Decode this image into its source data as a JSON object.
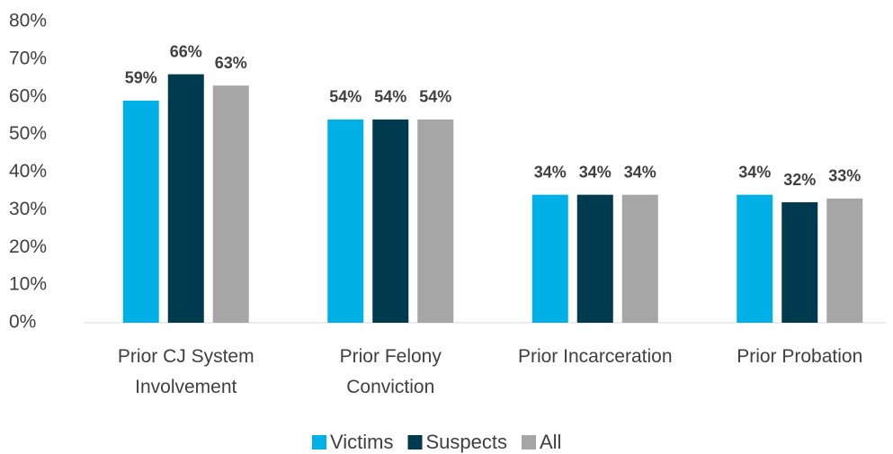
{
  "chart_data": {
    "type": "bar",
    "categories": [
      "Prior CJ System Involvement",
      "Prior Felony Conviction",
      "Prior Incarceration",
      "Prior Probation"
    ],
    "series": [
      {
        "name": "Victims",
        "color": "#00b0e6",
        "values": [
          59,
          54,
          34,
          34
        ],
        "value_labels": [
          "59%",
          "54%",
          "34%",
          "34%"
        ]
      },
      {
        "name": "Suspects",
        "color": "#003a4f",
        "values": [
          66,
          54,
          34,
          32
        ],
        "value_labels": [
          "66%",
          "54%",
          "34%",
          "32%"
        ]
      },
      {
        "name": "All",
        "color": "#a6a6a6",
        "values": [
          63,
          54,
          34,
          33
        ],
        "value_labels": [
          "63%",
          "54%",
          "34%",
          "33%"
        ]
      }
    ],
    "ylim": [
      0,
      80
    ],
    "yticks": [
      {
        "value": 0,
        "label": "0%"
      },
      {
        "value": 10,
        "label": "10%"
      },
      {
        "value": 20,
        "label": "20%"
      },
      {
        "value": 30,
        "label": "30%"
      },
      {
        "value": 40,
        "label": "40%"
      },
      {
        "value": 50,
        "label": "50%"
      },
      {
        "value": 60,
        "label": "60%"
      },
      {
        "value": 70,
        "label": "70%"
      },
      {
        "value": 80,
        "label": "80%"
      }
    ],
    "grid": false,
    "legend": "bottom"
  }
}
